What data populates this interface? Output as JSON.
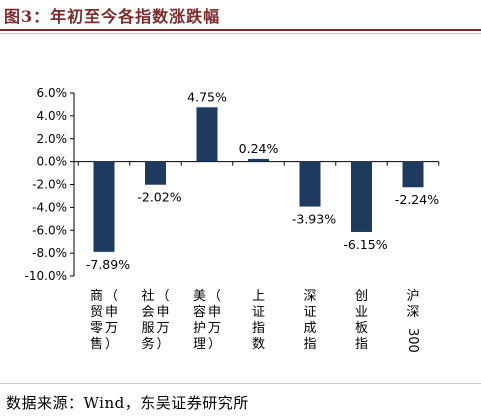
{
  "figure": {
    "title": "图3：年初至今各指数涨跌幅",
    "source": "数据来源：Wind，东吴证券研究所"
  },
  "colors": {
    "bar": "#1f3a5f",
    "title": "#7b2b2b",
    "axis": "#000000"
  },
  "chart_data": {
    "type": "bar",
    "categories": [
      "商贸零售（申万）",
      "社会服务（申万）",
      "美容护理（申万）",
      "上证指数",
      "深证成指",
      "创业板指",
      "沪深300"
    ],
    "category_columns": [
      [
        "商贸零售",
        "（申万）"
      ],
      [
        "社会服务",
        "（申万）"
      ],
      [
        "美容护理",
        "（申万）"
      ],
      [
        "上证指数"
      ],
      [
        "深证成指"
      ],
      [
        "创业板指"
      ],
      [
        "沪深300"
      ]
    ],
    "values": [
      -7.89,
      -2.02,
      4.75,
      0.24,
      -3.93,
      -6.15,
      -2.24
    ],
    "data_labels": [
      "-7.89%",
      "-2.02%",
      "4.75%",
      "0.24%",
      "-3.93%",
      "-6.15%",
      "-2.24%"
    ],
    "yticks": [
      "6.0%",
      "4.0%",
      "2.0%",
      "0.0%",
      "-2.0%",
      "-4.0%",
      "-6.0%",
      "-8.0%",
      "-10.0%"
    ],
    "ytick_values": [
      6,
      4,
      2,
      0,
      -2,
      -4,
      -6,
      -8,
      -10
    ],
    "ylim": [
      -10,
      6
    ],
    "unit": "%",
    "grid": false,
    "legend": "none"
  }
}
